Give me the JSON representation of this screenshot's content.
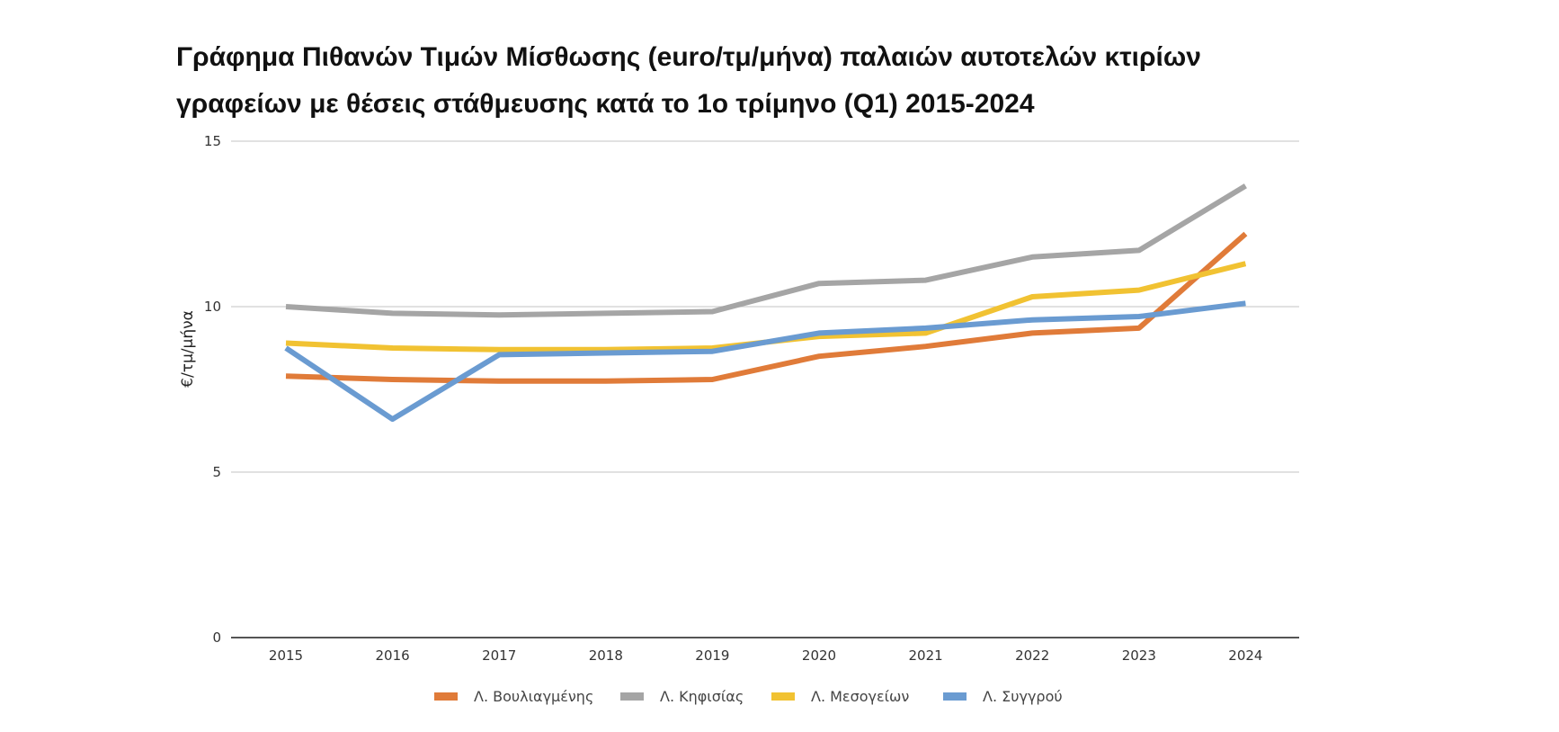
{
  "chart_data": {
    "type": "line",
    "title": "Γράφημα Πιθανών Τιμών Μίσθωσης (euro/τμ/μήνα) παλαιών αυτοτελών κτιρίων γραφείων με θέσεις στάθμευσης κατά το 1ο τρίμηνο (Q1) 2015-2024",
    "title_lines": [
      "Γράφημα Πιθανών Τιμών Μίσθωσης (euro/τμ/μήνα) παλαιών αυτοτελών κτιρίων",
      "γραφείων με θέσεις στάθμευσης κατά το 1ο τρίμηνο (Q1) 2015-2024"
    ],
    "xlabel": "",
    "ylabel": "€/τμ/μήνα",
    "x": [
      "2015",
      "2016",
      "2017",
      "2018",
      "2019",
      "2020",
      "2021",
      "2022",
      "2023",
      "2024"
    ],
    "ylim": [
      0,
      15
    ],
    "yticks": [
      "0",
      "5",
      "10",
      "15"
    ],
    "grid": true,
    "legend_position": "bottom",
    "series": [
      {
        "name": "Λ. Βουλιαγμένης",
        "color": "#e07b39",
        "values": [
          7.9,
          7.8,
          7.75,
          7.75,
          7.8,
          8.5,
          8.8,
          9.2,
          9.35,
          12.2
        ]
      },
      {
        "name": "Λ. Κηφισίας",
        "color": "#a5a5a5",
        "values": [
          10.0,
          9.8,
          9.75,
          9.8,
          9.85,
          10.7,
          10.8,
          11.5,
          11.7,
          13.65
        ]
      },
      {
        "name": "Λ. Μεσογείων",
        "color": "#f1c232",
        "values": [
          8.9,
          8.75,
          8.7,
          8.7,
          8.75,
          9.1,
          9.2,
          10.3,
          10.5,
          11.3
        ]
      },
      {
        "name": "Λ. Συγγρού",
        "color": "#6a9bd1",
        "values": [
          8.75,
          6.6,
          8.55,
          8.6,
          8.65,
          9.2,
          9.35,
          9.6,
          9.7,
          10.1
        ]
      }
    ]
  }
}
